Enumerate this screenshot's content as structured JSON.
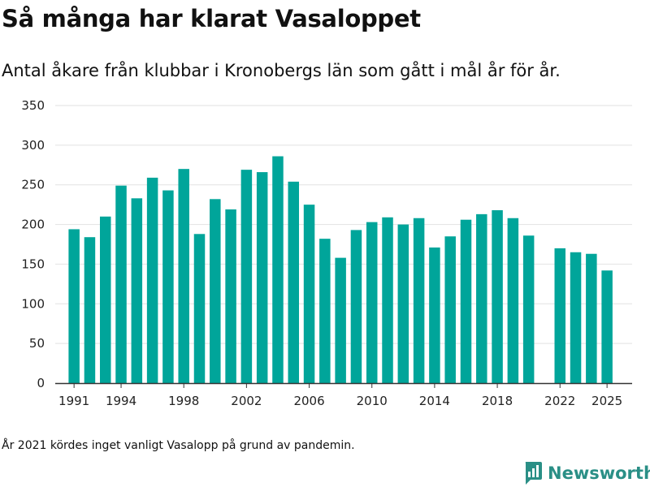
{
  "title": "Så många har klarat Vasaloppet",
  "subtitle": "Antal åkare från klubbar i Kronobergs län som gått i mål år för år.",
  "footnote": "År 2021 kördes inget vanligt Vasalopp på grund av pandemin.",
  "brand": {
    "name": "Newsworthy",
    "color": "#2a8f86",
    "icon": "bar-chart-logo-icon"
  },
  "colors": {
    "bar": "#00a59a",
    "grid": "#e2e2e2",
    "axis": "#333333"
  },
  "chart_data": {
    "type": "bar",
    "title": "Så många har klarat Vasaloppet",
    "xlabel": "",
    "ylabel": "",
    "ylim": [
      0,
      350
    ],
    "yticks": [
      0,
      50,
      100,
      150,
      200,
      250,
      300,
      350
    ],
    "xticks": [
      1991,
      1994,
      1998,
      2002,
      2006,
      2010,
      2014,
      2018,
      2022,
      2025
    ],
    "xlim": [
      1989.8,
      2026.6
    ],
    "grid": true,
    "legend": "none",
    "categories": [
      1991,
      1992,
      1993,
      1994,
      1995,
      1996,
      1997,
      1998,
      1999,
      2000,
      2001,
      2002,
      2003,
      2004,
      2005,
      2006,
      2007,
      2008,
      2009,
      2010,
      2011,
      2012,
      2013,
      2014,
      2015,
      2016,
      2017,
      2018,
      2019,
      2020,
      2022,
      2023,
      2024,
      2025
    ],
    "values": [
      194,
      184,
      210,
      249,
      233,
      259,
      243,
      270,
      188,
      232,
      219,
      269,
      266,
      286,
      254,
      225,
      182,
      158,
      193,
      203,
      209,
      200,
      208,
      171,
      185,
      206,
      213,
      218,
      208,
      186,
      170,
      165,
      163,
      142
    ]
  }
}
